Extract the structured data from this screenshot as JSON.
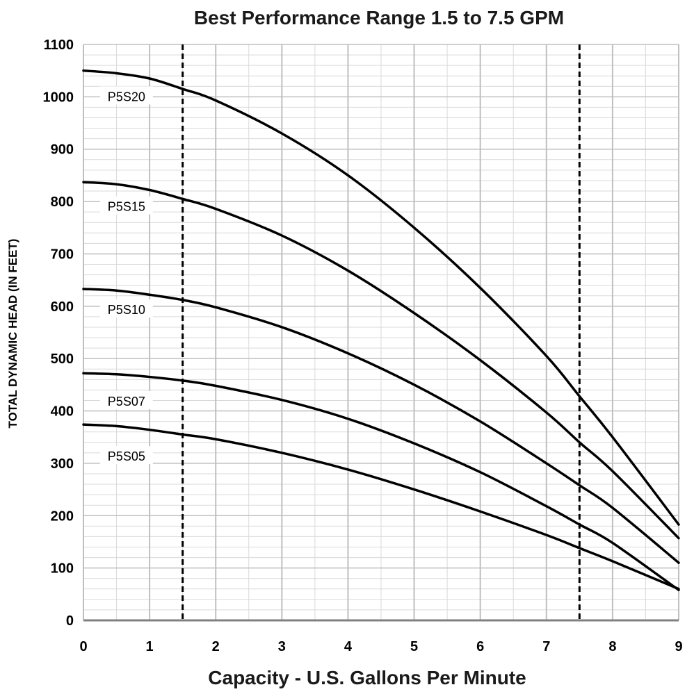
{
  "chart_data": {
    "type": "line",
    "title": "Best Performance Range 1.5 to 7.5 GPM",
    "xlabel": "Capacity - U.S. Gallons Per Minute",
    "ylabel": "TOTAL DYNAMIC HEAD (IN FEET)",
    "xlim": [
      0,
      9
    ],
    "ylim": [
      0,
      1100
    ],
    "x_ticks": [
      0,
      1,
      2,
      3,
      4,
      5,
      6,
      7,
      8,
      9
    ],
    "y_ticks": [
      0,
      100,
      200,
      300,
      400,
      500,
      600,
      700,
      800,
      900,
      1000,
      1100
    ],
    "x_minor_step": 0.5,
    "y_minor_step": 20,
    "grid": true,
    "reference_lines": [
      {
        "x": 1.5,
        "style": "dashed"
      },
      {
        "x": 7.5,
        "style": "dashed"
      }
    ],
    "series": [
      {
        "name": "P5S20",
        "label_at": [
          0.65,
          1000
        ],
        "x": [
          0,
          0.5,
          1,
          1.5,
          2,
          3,
          4,
          5,
          6,
          7,
          7.5,
          8,
          9
        ],
        "y": [
          1050,
          1045,
          1035,
          1015,
          993,
          930,
          850,
          750,
          635,
          505,
          428,
          350,
          183
        ]
      },
      {
        "name": "P5S15",
        "label_at": [
          0.65,
          790
        ],
        "x": [
          0,
          0.5,
          1,
          1.5,
          2,
          3,
          4,
          5,
          6,
          7,
          7.5,
          8,
          9
        ],
        "y": [
          837,
          833,
          822,
          805,
          786,
          735,
          668,
          587,
          497,
          397,
          340,
          285,
          157
        ]
      },
      {
        "name": "P5S10",
        "label_at": [
          0.65,
          593
        ],
        "x": [
          0,
          0.5,
          1,
          1.5,
          2,
          3,
          4,
          5,
          6,
          7,
          7.5,
          8,
          9
        ],
        "y": [
          633,
          630,
          622,
          612,
          598,
          560,
          510,
          450,
          380,
          300,
          258,
          215,
          110
        ]
      },
      {
        "name": "P5S07",
        "label_at": [
          0.65,
          418
        ],
        "x": [
          0,
          0.5,
          1,
          1.5,
          2,
          3,
          4,
          5,
          6,
          7,
          7.5,
          8,
          9
        ],
        "y": [
          472,
          470,
          465,
          458,
          448,
          421,
          385,
          338,
          283,
          218,
          183,
          148,
          58
        ]
      },
      {
        "name": "P5S05",
        "label_at": [
          0.65,
          313
        ],
        "x": [
          0,
          0.5,
          1,
          1.5,
          2,
          3,
          4,
          5,
          6,
          7,
          7.5,
          8,
          9
        ],
        "y": [
          374,
          371,
          364,
          355,
          346,
          320,
          288,
          250,
          208,
          163,
          138,
          113,
          60
        ]
      }
    ],
    "colors": {
      "line": "#000000",
      "grid_major": "#bfbfbf",
      "grid_minor": "#d9d9d9",
      "x_axis": "#808080",
      "background": "#ffffff"
    }
  }
}
